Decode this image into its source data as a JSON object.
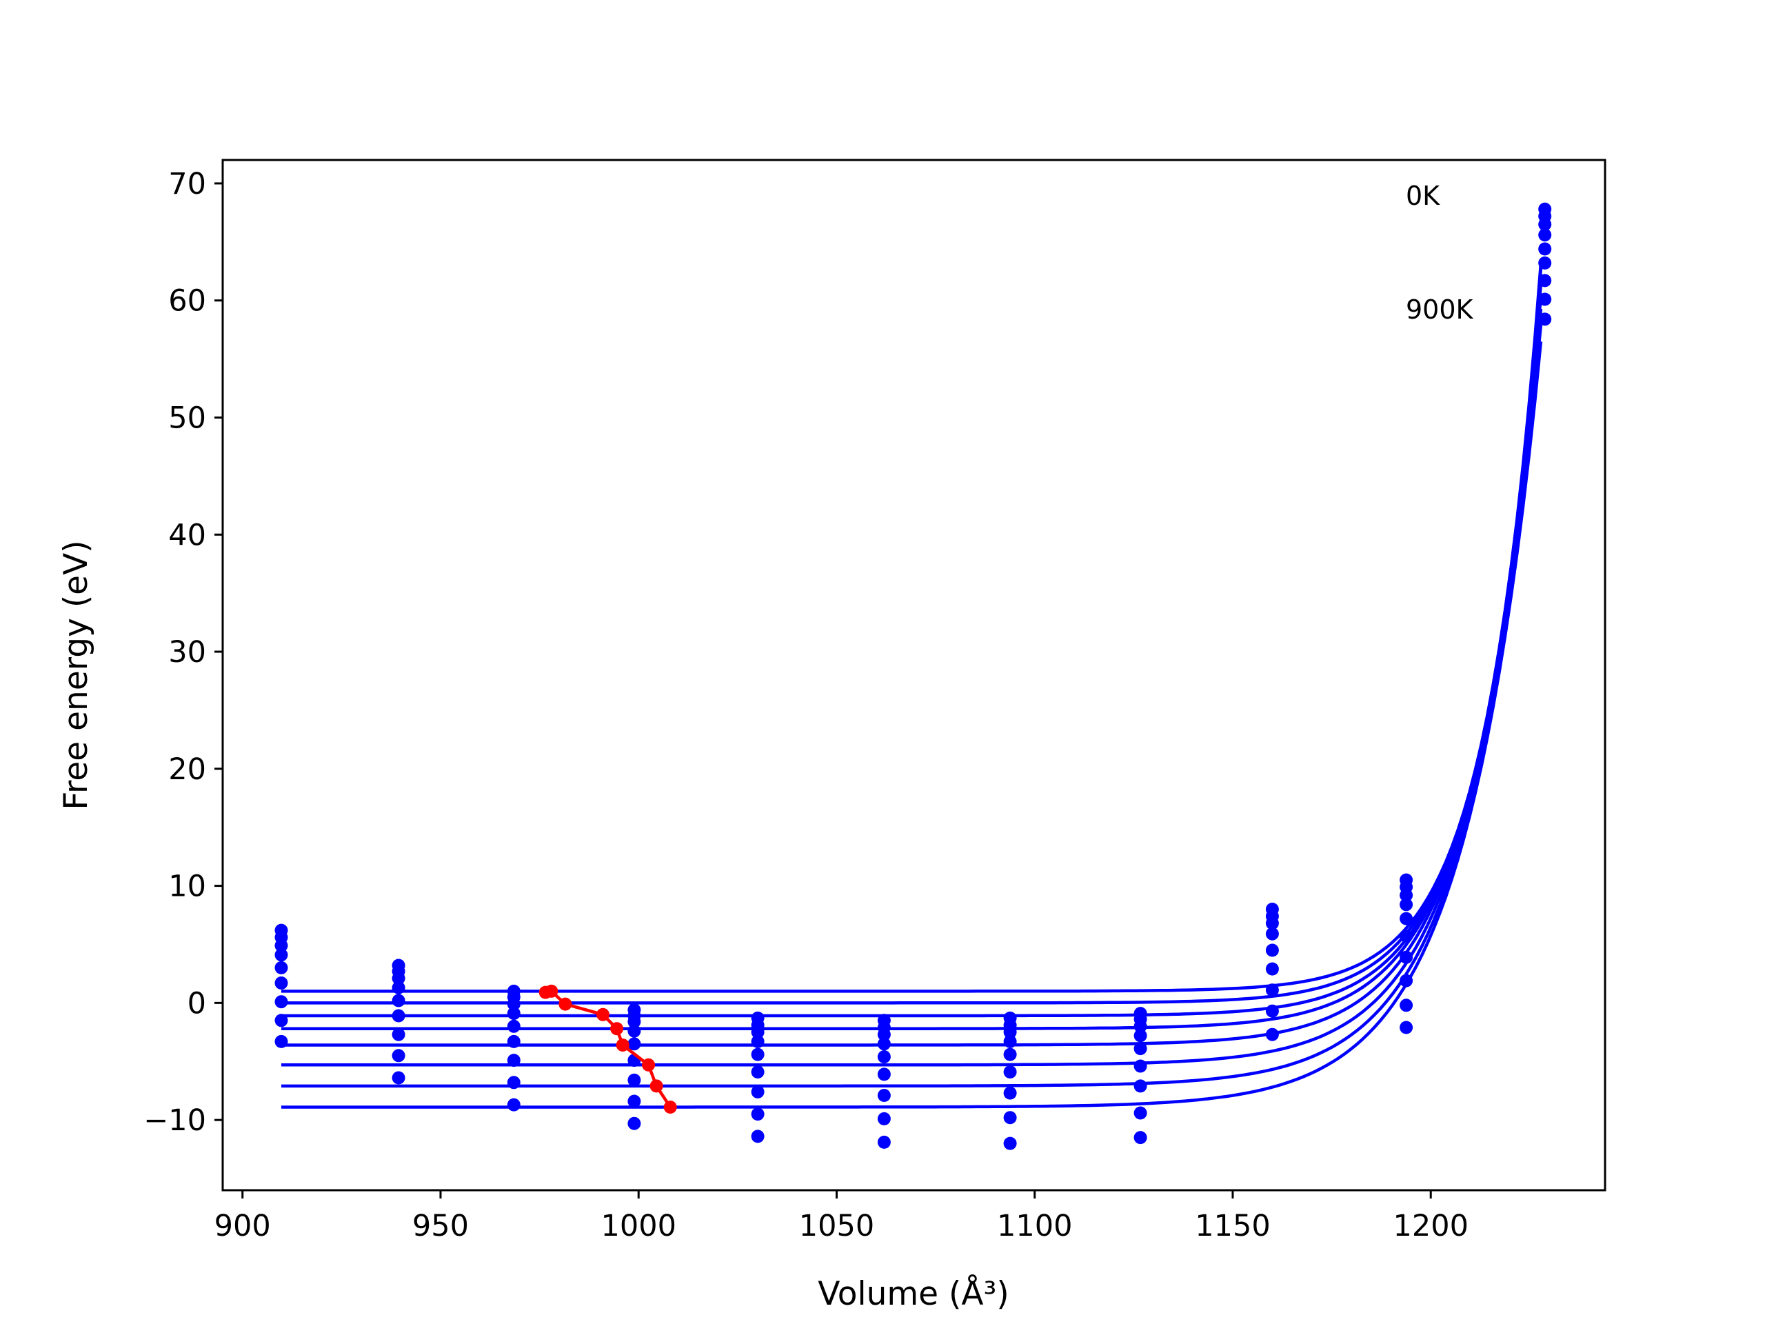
{
  "chart_data": {
    "type": "line",
    "title": "",
    "xlabel": "Volume (Å³)",
    "ylabel": "Free energy (eV)",
    "xlim": [
      895,
      1244
    ],
    "ylim": [
      -16,
      72
    ],
    "x_ticks": [
      900,
      950,
      1000,
      1050,
      1100,
      1150,
      1200
    ],
    "y_ticks": [
      -10,
      0,
      10,
      20,
      30,
      40,
      50,
      60,
      70
    ],
    "grid": false,
    "legend": "none",
    "annotations": [
      "0K",
      "900K"
    ],
    "colors": {
      "fits": "#0000ff",
      "points": "#0000ff",
      "minima": "#ff0000"
    },
    "volumes": [
      909.8,
      939.4,
      968.5,
      998.9,
      1030.1,
      1062.0,
      1093.8,
      1126.7,
      1160.0,
      1193.8,
      1228.8
    ],
    "series": [
      {
        "values": [
          6.2,
          3.2,
          1.0,
          -0.6,
          -1.3,
          -1.5,
          -1.3,
          -0.9,
          8.0,
          10.5,
          67.8
        ]
      },
      {
        "values": [
          5.6,
          2.7,
          0.5,
          -1.1,
          -1.9,
          -2.1,
          -1.9,
          -1.4,
          7.4,
          9.9,
          67.2
        ]
      },
      {
        "values": [
          4.9,
          2.1,
          -0.1,
          -1.6,
          -2.5,
          -2.7,
          -2.5,
          -2.0,
          6.8,
          9.2,
          66.5
        ]
      },
      {
        "values": [
          4.1,
          1.3,
          -0.9,
          -2.4,
          -3.3,
          -3.5,
          -3.3,
          -2.8,
          5.9,
          8.4,
          65.6
        ]
      },
      {
        "values": [
          3.0,
          0.2,
          -2.0,
          -3.5,
          -4.4,
          -4.6,
          -4.4,
          -3.9,
          4.5,
          7.2,
          64.4
        ]
      },
      {
        "values": [
          1.7,
          -1.1,
          -3.3,
          -4.9,
          -5.9,
          -6.1,
          -5.9,
          -5.4,
          2.9,
          5.7,
          63.2
        ]
      },
      {
        "values": [
          0.1,
          -2.7,
          -4.9,
          -6.6,
          -7.6,
          -7.9,
          -7.7,
          -7.1,
          1.1,
          3.9,
          61.7
        ]
      },
      {
        "values": [
          -1.5,
          -4.5,
          -6.8,
          -8.4,
          -9.5,
          -9.9,
          -9.8,
          -9.4,
          -0.7,
          1.9,
          60.1
        ]
      },
      {
        "values": [
          -3.3,
          -6.4,
          -8.7,
          -10.3,
          -11.4,
          -11.9,
          -12.0,
          -11.5,
          -2.7,
          -0.2,
          58.4
        ]
      },
      {
        "values": [
          null,
          null,
          null,
          null,
          null,
          null,
          null,
          null,
          null,
          -2.1,
          null
        ]
      }
    ],
    "fit_curves": [
      {
        "plateau": 1.0,
        "vmin": 977
      },
      {
        "plateau": 0.0,
        "vmin": 981
      },
      {
        "plateau": -1.1,
        "vmin": 991
      },
      {
        "plateau": -2.2,
        "vmin": 995
      },
      {
        "plateau": -3.6,
        "vmin": 996
      },
      {
        "plateau": -5.3,
        "vmin": 1003
      },
      {
        "plateau": -7.1,
        "vmin": 1005
      },
      {
        "plateau": -8.9,
        "vmin": 1008
      }
    ],
    "minima": {
      "x": [
        976.5,
        978.0,
        981.5,
        991.0,
        994.5,
        996.0,
        1002.5,
        1004.5,
        1008.0
      ],
      "y": [
        0.9,
        1.0,
        -0.1,
        -1.0,
        -2.2,
        -3.6,
        -5.3,
        -7.1,
        -8.9
      ]
    }
  }
}
